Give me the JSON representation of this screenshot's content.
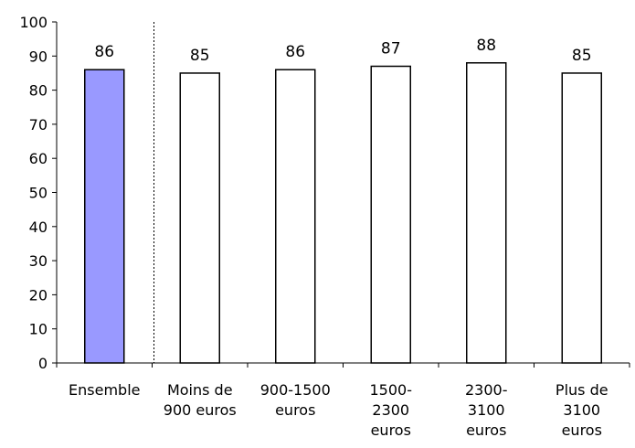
{
  "chart_data": {
    "type": "bar",
    "categories": [
      [
        "Ensemble"
      ],
      [
        "Moins de",
        "900 euros"
      ],
      [
        "900-1500",
        "euros"
      ],
      [
        "1500-",
        "2300",
        "euros"
      ],
      [
        "2300-",
        "3100",
        "euros"
      ],
      [
        "Plus de",
        "3100",
        "euros"
      ]
    ],
    "values": [
      86,
      85,
      86,
      87,
      88,
      85
    ],
    "ylim": [
      0,
      100
    ],
    "yticks": [
      0,
      10,
      20,
      30,
      40,
      50,
      60,
      70,
      80,
      90,
      100
    ],
    "title": "",
    "xlabel": "",
    "ylabel": "",
    "separator_after_index": 0,
    "colors": {
      "highlight_fill": "#9999FF",
      "bar_fill": "#FFFFFF",
      "bar_stroke": "#000000",
      "axis": "#000000"
    }
  }
}
